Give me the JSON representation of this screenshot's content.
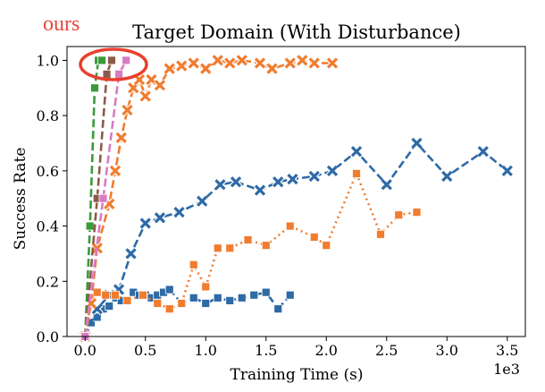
{
  "annotation": {
    "label": "ours",
    "label_color": "#e8473a",
    "ellipse_color": "#e8402f"
  },
  "chart_data": {
    "type": "line",
    "title": "Target Domain (With Disturbance)",
    "xlabel": "Training Time (s)",
    "ylabel": "Success Rate",
    "x_offset_label": "1e3",
    "xlim": [
      -0.15,
      3.65
    ],
    "ylim": [
      0.0,
      1.05
    ],
    "xticks": [
      0.0,
      0.5,
      1.0,
      1.5,
      2.0,
      2.5,
      3.0,
      3.5
    ],
    "xtick_labels": [
      "0.0",
      "0.5",
      "1.0",
      "1.5",
      "2.0",
      "2.5",
      "3.0",
      "3.5"
    ],
    "yticks": [
      0.0,
      0.2,
      0.4,
      0.6,
      0.8,
      1.0
    ],
    "ytick_labels": [
      "0.0",
      "0.2",
      "0.4",
      "0.6",
      "0.8",
      "1.0"
    ],
    "grid": false,
    "legend": "none",
    "series": [
      {
        "color": "#2e6aa6",
        "dash": "dashdot",
        "marker": "square",
        "x": [
          0.0,
          0.05,
          0.1,
          0.15,
          0.2,
          0.25,
          0.3,
          0.35,
          0.4,
          0.45,
          0.5,
          0.55,
          0.6,
          0.65,
          0.7,
          0.8,
          0.9,
          1.0,
          1.1,
          1.2,
          1.3,
          1.4,
          1.5,
          1.6,
          1.7
        ],
        "y": [
          0.0,
          0.05,
          0.07,
          0.1,
          0.11,
          0.14,
          0.13,
          0.13,
          0.16,
          0.15,
          0.15,
          0.14,
          0.15,
          0.16,
          0.17,
          0.12,
          0.14,
          0.12,
          0.14,
          0.13,
          0.14,
          0.15,
          0.16,
          0.1,
          0.15
        ]
      },
      {
        "color": "#2e6aa6",
        "dash": "dashed",
        "marker": "x",
        "x": [
          0.0,
          0.1,
          0.2,
          0.28,
          0.38,
          0.5,
          0.62,
          0.78,
          0.97,
          1.12,
          1.25,
          1.45,
          1.6,
          1.72,
          1.9,
          2.05,
          2.25,
          2.5,
          2.75,
          3.0,
          3.3,
          3.5
        ],
        "y": [
          0.0,
          0.1,
          0.15,
          0.17,
          0.3,
          0.41,
          0.43,
          0.45,
          0.49,
          0.55,
          0.56,
          0.53,
          0.56,
          0.57,
          0.58,
          0.6,
          0.67,
          0.55,
          0.7,
          0.58,
          0.67,
          0.6
        ]
      },
      {
        "color": "#f07c2f",
        "dash": "dotted",
        "marker": "square",
        "x": [
          0.0,
          0.05,
          0.1,
          0.17,
          0.25,
          0.35,
          0.48,
          0.6,
          0.7,
          0.8,
          0.9,
          1.0,
          1.1,
          1.2,
          1.35,
          1.5,
          1.7,
          1.9,
          2.0,
          2.25,
          2.45,
          2.6,
          2.75
        ],
        "y": [
          0.0,
          0.13,
          0.16,
          0.15,
          0.15,
          0.13,
          0.15,
          0.12,
          0.1,
          0.12,
          0.26,
          0.18,
          0.32,
          0.32,
          0.35,
          0.33,
          0.4,
          0.36,
          0.33,
          0.59,
          0.37,
          0.44,
          0.45
        ]
      },
      {
        "color": "#f07c2f",
        "dash": "dashed",
        "marker": "x",
        "x": [
          0.0,
          0.05,
          0.1,
          0.2,
          0.25,
          0.3,
          0.35,
          0.4,
          0.45,
          0.5,
          0.55,
          0.62,
          0.7,
          0.8,
          0.9,
          1.0,
          1.1,
          1.2,
          1.3,
          1.45,
          1.55,
          1.7,
          1.8,
          1.9,
          2.05
        ],
        "y": [
          0.0,
          0.12,
          0.32,
          0.48,
          0.6,
          0.72,
          0.82,
          0.9,
          0.93,
          0.87,
          0.93,
          0.91,
          0.97,
          0.98,
          0.99,
          0.97,
          1.0,
          0.99,
          1.0,
          0.99,
          0.97,
          0.99,
          1.0,
          0.99,
          0.99
        ]
      },
      {
        "color": "#3a9a3a",
        "dash": "dashed",
        "marker": "square",
        "x": [
          0.0,
          0.04,
          0.08,
          0.11,
          0.14
        ],
        "y": [
          0.0,
          0.4,
          0.9,
          1.0,
          1.0
        ]
      },
      {
        "color": "#8c5a4a",
        "dash": "dashed",
        "marker": "square",
        "x": [
          0.0,
          0.1,
          0.18,
          0.22
        ],
        "y": [
          0.0,
          0.5,
          0.95,
          1.0
        ]
      },
      {
        "color": "#d77cc2",
        "dash": "dashed",
        "marker": "square",
        "x": [
          0.0,
          0.15,
          0.28,
          0.34
        ],
        "y": [
          0.0,
          0.5,
          0.95,
          1.0
        ]
      }
    ]
  }
}
